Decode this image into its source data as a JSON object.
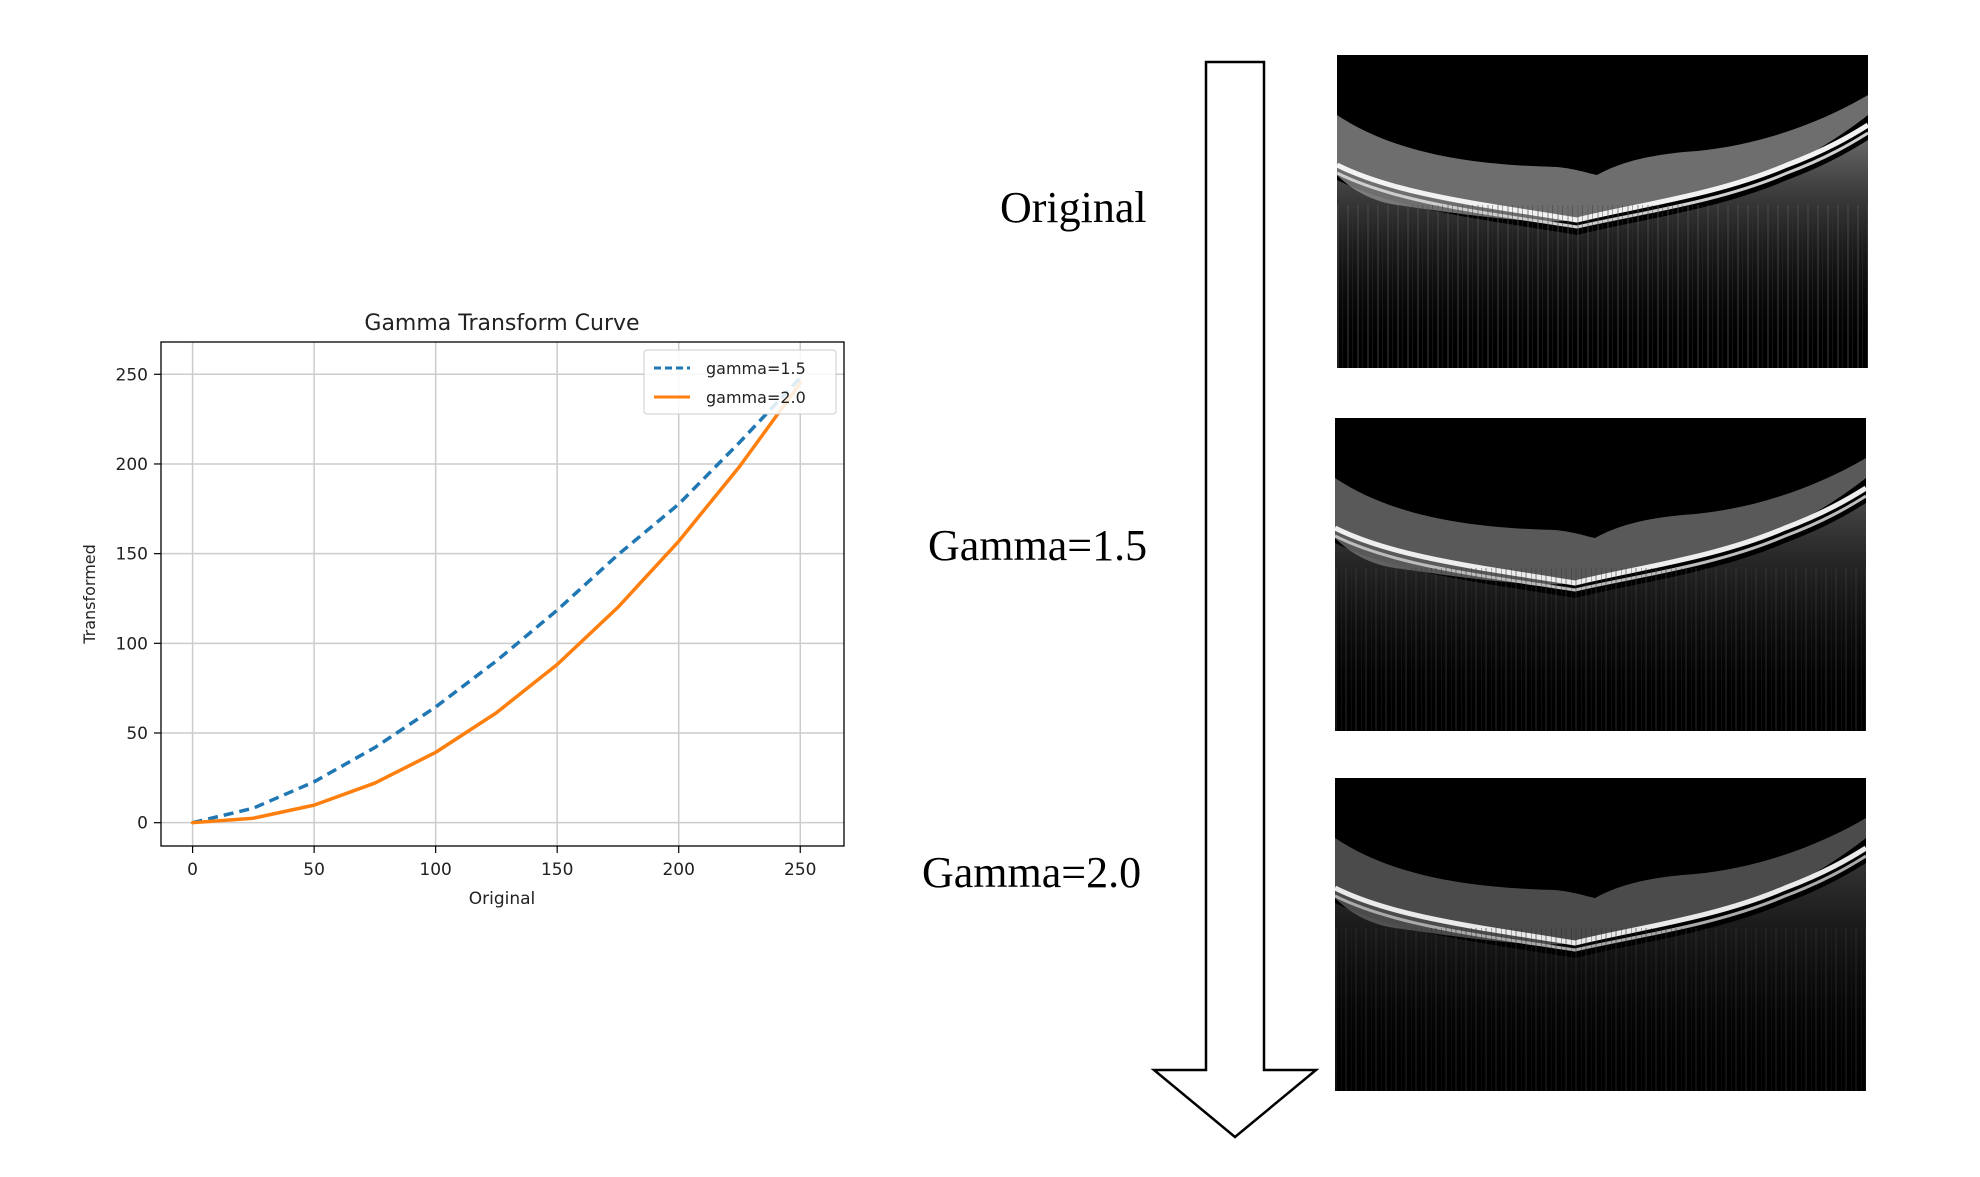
{
  "chart_data": {
    "type": "line",
    "title": "Gamma Transform Curve",
    "xlabel": "Original",
    "ylabel": "Transformed",
    "xlim": [
      -13,
      268
    ],
    "ylim": [
      -13,
      268
    ],
    "xticks": [
      0,
      50,
      100,
      150,
      200,
      250
    ],
    "yticks": [
      0,
      50,
      100,
      150,
      200,
      250
    ],
    "grid": true,
    "legend": "top-right",
    "x": [
      0,
      25,
      50,
      75,
      100,
      125,
      150,
      175,
      200,
      225,
      250
    ],
    "series": [
      {
        "name": "gamma=1.5",
        "style": "dashed",
        "color": "#1f77b4",
        "values": [
          0.0,
          8.1,
          22.8,
          41.9,
          64.5,
          90.2,
          118.5,
          149.4,
          177.6,
          212.0,
          248.0
        ]
      },
      {
        "name": "gamma=2.0",
        "style": "solid",
        "color": "#ff7f0e",
        "values": [
          0.0,
          2.5,
          9.8,
          22.1,
          39.2,
          61.3,
          88.2,
          120.1,
          156.9,
          198.5,
          245.1
        ]
      }
    ]
  },
  "labels": {
    "original": "Original",
    "gamma15": "Gamma=1.5",
    "gamma20": "Gamma=2.0"
  },
  "images": {
    "original": "OCT retinal scan (original)",
    "gamma15": "OCT retinal scan (gamma=1.5)",
    "gamma20": "OCT retinal scan (gamma=2.0)"
  },
  "colors": {
    "background": "#ffffff",
    "grid": "#cccccc",
    "oct_background": "#000000"
  }
}
